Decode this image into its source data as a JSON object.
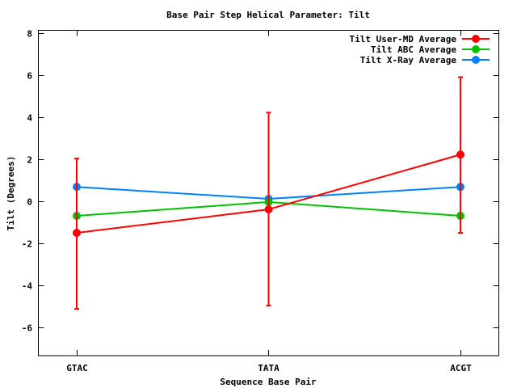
{
  "chart_data": {
    "type": "line",
    "title": "Base Pair Step Helical Parameter: Tilt",
    "xlabel": "Sequence Base Pair",
    "ylabel": "Tilt (Degrees)",
    "categories": [
      "GTAC",
      "TATA",
      "ACGT"
    ],
    "xlim": [
      -0.2,
      2.2
    ],
    "ylim": [
      -7.35,
      8.15
    ],
    "yticks": [
      8,
      6,
      4,
      2,
      0,
      -2,
      -4,
      -6
    ],
    "ytick_labels": [
      "8",
      "6",
      "4",
      "2",
      "0",
      "-2",
      "-4",
      "-6"
    ],
    "grid": false,
    "legend_position": "top-right",
    "series": [
      {
        "name": "Tilt User-MD Average",
        "color": "#ff0000",
        "values": [
          -1.5,
          -0.38,
          2.23
        ],
        "err_low": [
          -5.12,
          -4.96,
          -1.5
        ],
        "err_high": [
          2.04,
          4.23,
          5.92
        ]
      },
      {
        "name": "Tilt ABC Average",
        "color": "#00c000",
        "values": [
          -0.69,
          -0.03,
          -0.69
        ]
      },
      {
        "name": "Tilt X-Ray Average",
        "color": "#0080ff",
        "values": [
          0.69,
          0.12,
          0.69
        ]
      }
    ]
  }
}
